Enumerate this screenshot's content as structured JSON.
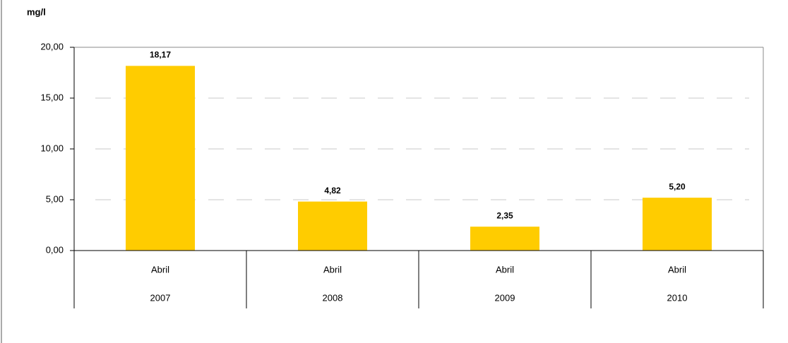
{
  "chart_data": {
    "type": "bar",
    "y_label": "mg/l",
    "categories": [
      "Abril",
      "Abril",
      "Abril",
      "Abril"
    ],
    "category_groups": [
      "2007",
      "2008",
      "2009",
      "2010"
    ],
    "values": [
      18.17,
      4.82,
      2.35,
      5.2
    ],
    "value_labels": [
      "18,17",
      "4,82",
      "2,35",
      "5,20"
    ],
    "color": "#ffcc00",
    "ylim": [
      0,
      20
    ],
    "yticks": [
      {
        "value": 0,
        "label": "0,00"
      },
      {
        "value": 5,
        "label": "5,00"
      },
      {
        "value": 10,
        "label": "10,00"
      },
      {
        "value": 15,
        "label": "15,00"
      },
      {
        "value": 20,
        "label": "20,00"
      }
    ],
    "grid": true
  }
}
